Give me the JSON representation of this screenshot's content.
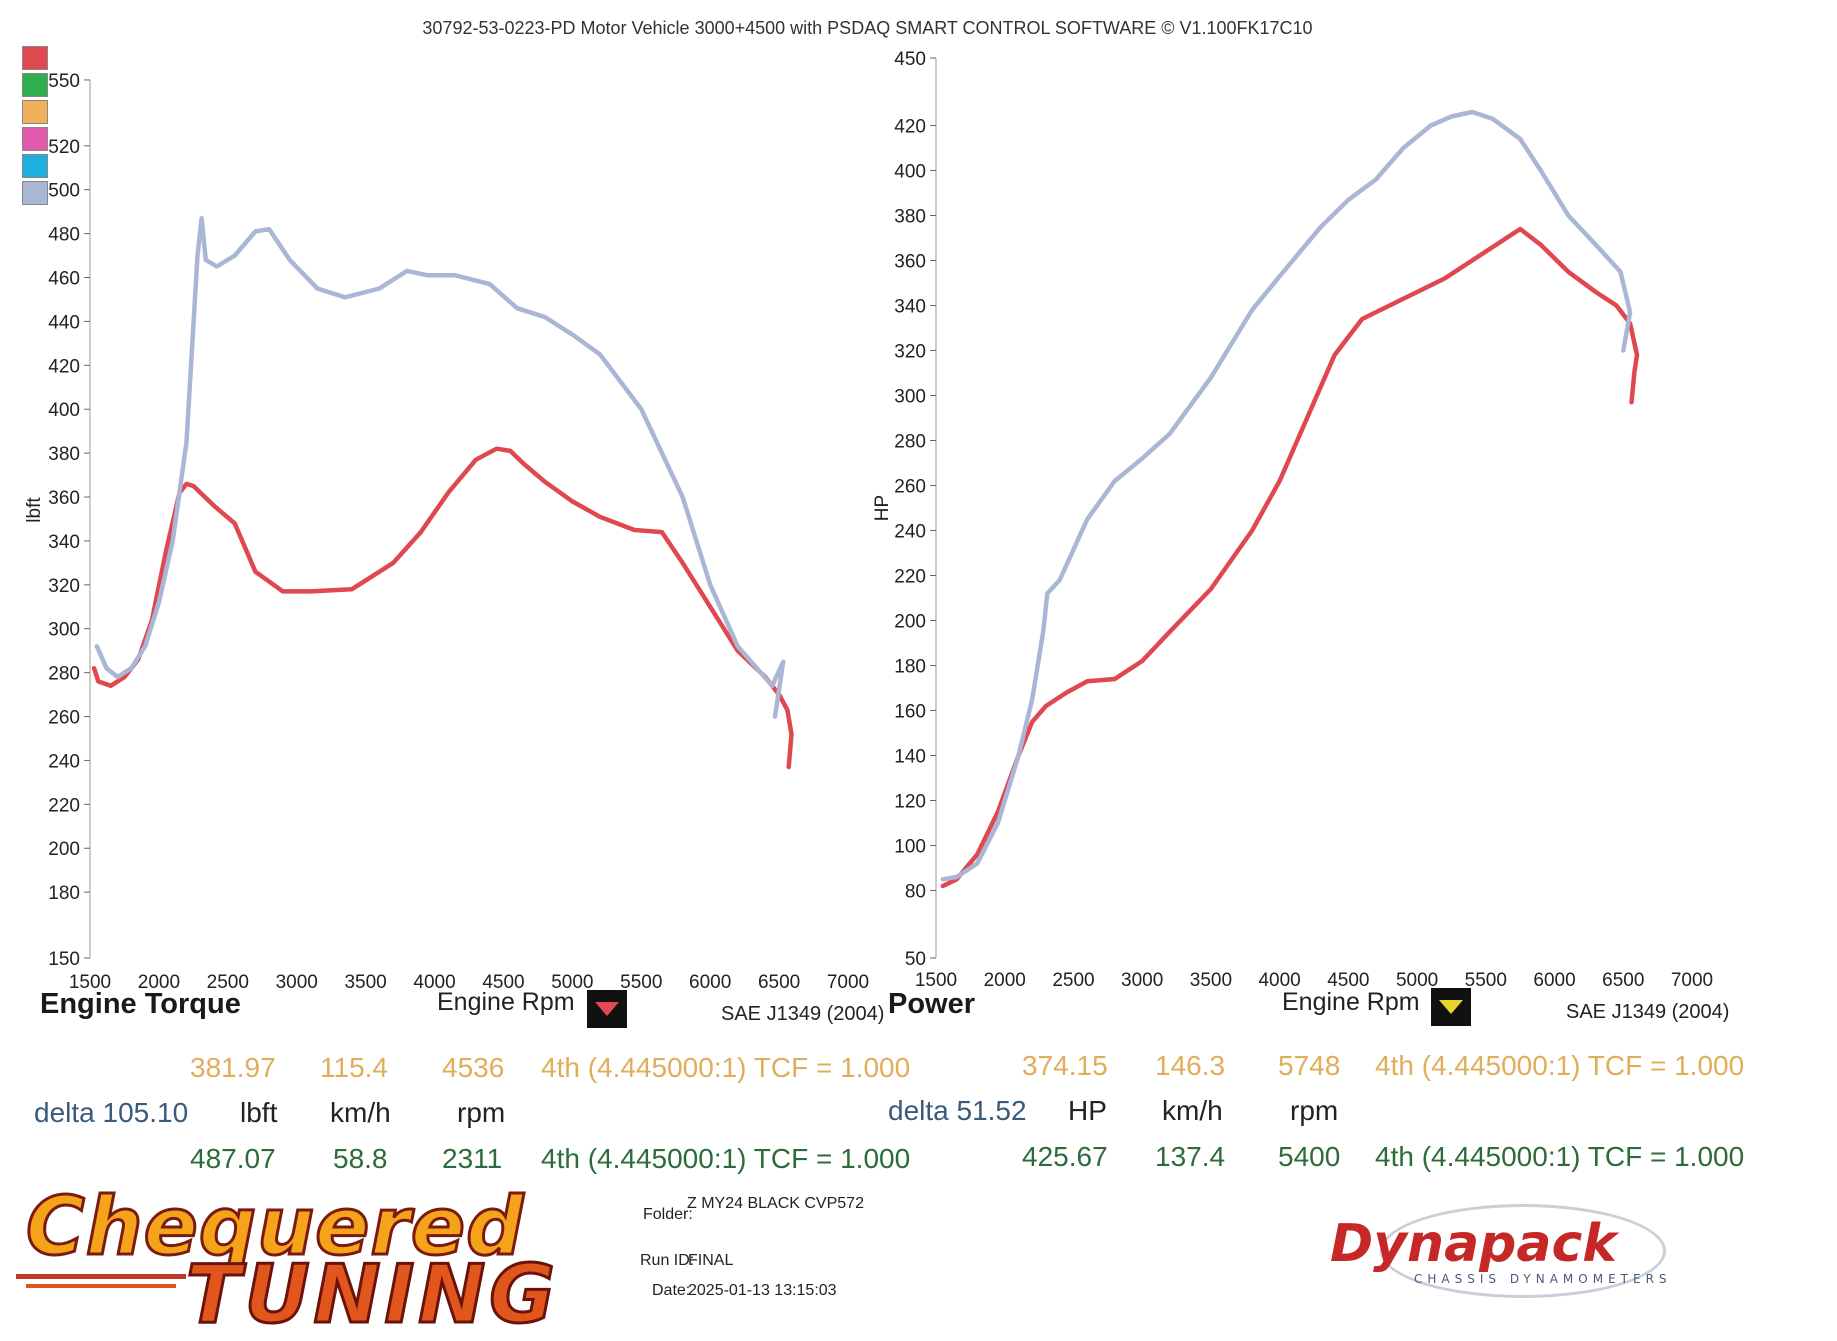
{
  "header": {
    "title": "30792-53-0223-PD Motor Vehicle 3000+4500 with PSDAQ SMART CONTROL SOFTWARE © V1.100FK17C10"
  },
  "legend": {
    "colors": [
      "#e0484f",
      "#2fae4d",
      "#f2b05a",
      "#e05aae",
      "#1eaee0",
      "#a9b6d6"
    ]
  },
  "panels": {
    "torque": {
      "title": "Engine Torque",
      "xlabel": "Engine Rpm",
      "ylabel": "lbft",
      "standard": "SAE J1349 (2004)",
      "readout": {
        "top": {
          "value": "381.97",
          "speed": "115.4",
          "rpm": "4536",
          "gear": "4th (4.445000:1) TCF = 1.000"
        },
        "delta": {
          "label": "delta 105.10",
          "unit": "lbft",
          "speed_unit": "km/h",
          "rpm_unit": "rpm"
        },
        "bottom": {
          "value": "487.07",
          "speed": "58.8",
          "rpm": "2311",
          "gear": "4th (4.445000:1) TCF = 1.000"
        }
      }
    },
    "power": {
      "title": "Power",
      "xlabel": "Engine Rpm",
      "ylabel": "HP",
      "standard": "SAE J1349 (2004)",
      "readout": {
        "top": {
          "value": "374.15",
          "speed": "146.3",
          "rpm": "5748",
          "gear": "4th (4.445000:1) TCF = 1.000"
        },
        "delta": {
          "label": "delta 51.52",
          "unit": "HP",
          "speed_unit": "km/h",
          "rpm_unit": "rpm"
        },
        "bottom": {
          "value": "425.67",
          "speed": "137.4",
          "rpm": "5400",
          "gear": "4th (4.445000:1) TCF = 1.000"
        }
      }
    }
  },
  "footer": {
    "folder_label": "Folder:",
    "folder_value": "Z MY24 BLACK CVP572",
    "run_label": "Run ID:",
    "run_value": "FINAL",
    "date_label": "Date:",
    "date_value": "2025-01-13 13:15:03",
    "logo_left_top": "Chequered",
    "logo_left_bottom": "TUNING",
    "logo_right": "Dynapack",
    "logo_right_sub": "CHASSIS DYNAMOMETERS"
  },
  "chart_data": [
    {
      "type": "line",
      "title": "Engine Torque",
      "xlabel": "Engine Rpm",
      "ylabel": "lbft",
      "xlim": [
        1500,
        7000
      ],
      "ylim": [
        150,
        560
      ],
      "xticks": [
        1500,
        2000,
        2500,
        3000,
        3500,
        4000,
        4500,
        5000,
        5500,
        6000,
        6500,
        7000
      ],
      "yticks": [
        150,
        180,
        200,
        220,
        240,
        260,
        280,
        300,
        320,
        340,
        360,
        380,
        400,
        420,
        440,
        460,
        480,
        500,
        520,
        550
      ],
      "series": [
        {
          "color": "#e0484f",
          "x": [
            1530,
            1560,
            1650,
            1750,
            1850,
            1950,
            2050,
            2150,
            2200,
            2250,
            2300,
            2400,
            2550,
            2700,
            2900,
            3100,
            3400,
            3700,
            3900,
            4100,
            4300,
            4450,
            4550,
            4650,
            4800,
            5000,
            5200,
            5450,
            5650,
            5800,
            6000,
            6200,
            6400,
            6500,
            6560,
            6590,
            6570
          ],
          "y": [
            282,
            276,
            274,
            278,
            286,
            304,
            335,
            362,
            366,
            365,
            362,
            356,
            348,
            326,
            317,
            317,
            318,
            330,
            344,
            362,
            377,
            382,
            381,
            375,
            367,
            358,
            351,
            345,
            344,
            330,
            310,
            290,
            278,
            270,
            263,
            252,
            237
          ]
        },
        {
          "color": "#a9b6d6",
          "x": [
            1550,
            1620,
            1700,
            1800,
            1900,
            2000,
            2100,
            2200,
            2280,
            2310,
            2340,
            2420,
            2550,
            2700,
            2800,
            2950,
            3150,
            3350,
            3600,
            3800,
            3950,
            4150,
            4400,
            4600,
            4800,
            5000,
            5200,
            5500,
            5800,
            6000,
            6200,
            6450,
            6530,
            6470
          ],
          "y": [
            292,
            282,
            278,
            282,
            292,
            312,
            340,
            385,
            470,
            487,
            468,
            465,
            470,
            481,
            482,
            468,
            455,
            451,
            455,
            463,
            461,
            461,
            457,
            446,
            442,
            434,
            425,
            400,
            360,
            320,
            292,
            274,
            285,
            260
          ]
        }
      ]
    },
    {
      "type": "line",
      "title": "Power",
      "xlabel": "Engine Rpm",
      "ylabel": "HP",
      "xlim": [
        1500,
        7000
      ],
      "ylim": [
        50,
        450
      ],
      "xticks": [
        1500,
        2000,
        2500,
        3000,
        3500,
        4000,
        4500,
        5000,
        5500,
        6000,
        6500,
        7000
      ],
      "yticks": [
        50,
        80,
        100,
        120,
        140,
        160,
        180,
        200,
        220,
        240,
        260,
        280,
        300,
        320,
        340,
        360,
        380,
        400,
        420,
        450
      ],
      "series": [
        {
          "color": "#e0484f",
          "x": [
            1550,
            1650,
            1800,
            1950,
            2100,
            2200,
            2300,
            2450,
            2600,
            2800,
            3000,
            3200,
            3500,
            3800,
            4000,
            4200,
            4400,
            4600,
            4800,
            5000,
            5200,
            5400,
            5600,
            5750,
            5900,
            6100,
            6300,
            6450,
            6550,
            6600,
            6580,
            6560
          ],
          "y": [
            82,
            85,
            96,
            115,
            140,
            155,
            162,
            168,
            173,
            174,
            182,
            195,
            214,
            240,
            262,
            290,
            318,
            334,
            340,
            346,
            352,
            360,
            368,
            374,
            367,
            355,
            346,
            340,
            332,
            318,
            310,
            297
          ]
        },
        {
          "color": "#a9b6d6",
          "x": [
            1550,
            1650,
            1800,
            1950,
            2100,
            2200,
            2280,
            2310,
            2400,
            2600,
            2800,
            3000,
            3200,
            3500,
            3800,
            4000,
            4300,
            4500,
            4700,
            4900,
            5100,
            5250,
            5400,
            5550,
            5750,
            5900,
            6100,
            6300,
            6480,
            6550,
            6500
          ],
          "y": [
            85,
            86,
            92,
            110,
            140,
            165,
            195,
            212,
            218,
            245,
            262,
            272,
            283,
            308,
            338,
            353,
            375,
            387,
            396,
            410,
            420,
            424,
            426,
            423,
            414,
            400,
            380,
            367,
            355,
            337,
            320
          ]
        }
      ]
    }
  ]
}
